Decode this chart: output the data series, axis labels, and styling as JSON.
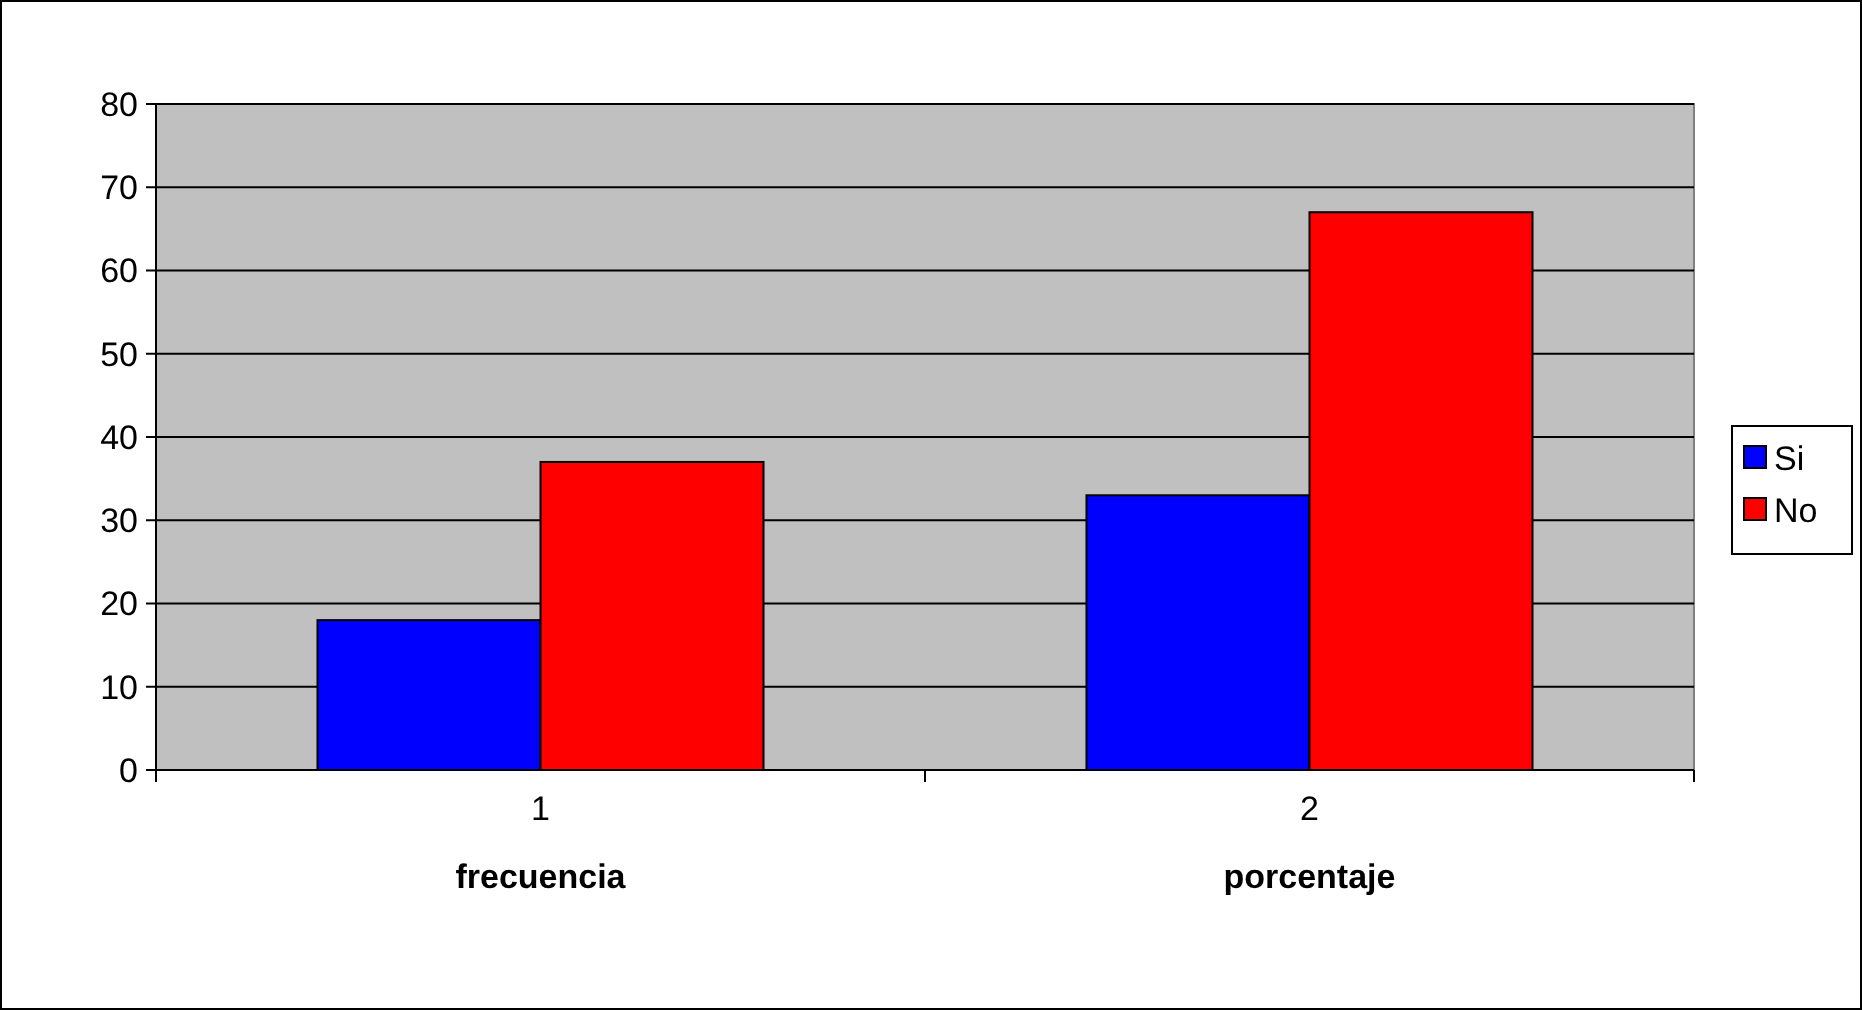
{
  "chart_data": {
    "type": "bar",
    "categories": [
      "1",
      "2"
    ],
    "series": [
      {
        "name": "Si",
        "color": "#0000ff",
        "values": [
          18,
          33
        ]
      },
      {
        "name": "No",
        "color": "#ff0000",
        "values": [
          37,
          67
        ]
      }
    ],
    "ylim": [
      0,
      80
    ],
    "yticks": [
      0,
      10,
      20,
      30,
      40,
      50,
      60,
      70,
      80
    ],
    "grid": "y",
    "legend": "right",
    "annotations": [
      "frecuencia",
      "porcentaje"
    ]
  }
}
